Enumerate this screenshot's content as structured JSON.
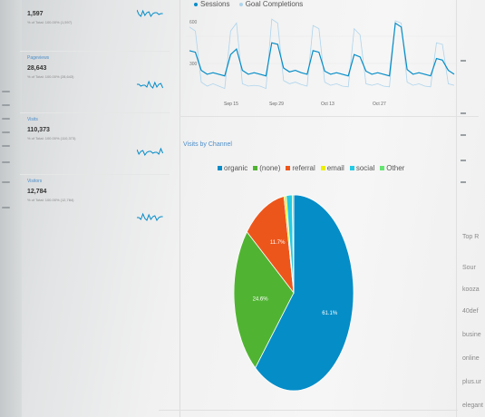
{
  "line_chart": {
    "legend": [
      {
        "label": "Sessions",
        "color": "#058dc7"
      },
      {
        "label": "Goal Completions",
        "color": "#aed4ec"
      }
    ],
    "y_labels": [
      "600",
      "300"
    ],
    "x_ticks": [
      "Sep 15",
      "Sep 29",
      "Oct 13",
      "Oct 27"
    ],
    "sessions": [
      60,
      58,
      35,
      30,
      32,
      30,
      28,
      55,
      62,
      35,
      30,
      32,
      30,
      28,
      70,
      68,
      38,
      33,
      35,
      32,
      30,
      60,
      58,
      34,
      30,
      32,
      30,
      28,
      55,
      52,
      34,
      30,
      32,
      30,
      28,
      95,
      90,
      36,
      30,
      32,
      30,
      28,
      50,
      48,
      35,
      30
    ],
    "goals": [
      90,
      85,
      20,
      15,
      18,
      15,
      12,
      85,
      95,
      18,
      15,
      16,
      15,
      12,
      100,
      95,
      22,
      18,
      20,
      17,
      15,
      92,
      88,
      20,
      16,
      18,
      15,
      14,
      88,
      80,
      18,
      16,
      18,
      15,
      14,
      98,
      95,
      20,
      16,
      18,
      15,
      14,
      70,
      68,
      18,
      16
    ]
  },
  "metric_cards": [
    {
      "name": "",
      "value": "1,597",
      "sub": "% of Total: 100.00% (1,597)"
    },
    {
      "name": "Pageviews",
      "value": "28,643",
      "sub": "% of Total: 100.00% (28,643)"
    },
    {
      "name": "Visits",
      "value": "110,373",
      "sub": "% of Total: 100.00% (110,373)"
    },
    {
      "name": "Visitors",
      "value": "12,784",
      "sub": "% of Total: 100.00% (12,784)"
    }
  ],
  "pie_section": {
    "title": "Visits by Channel"
  },
  "chart_data": {
    "type": "pie",
    "title": "Visits by Channel",
    "categories": [
      "organic",
      "(none)",
      "referral",
      "email",
      "social",
      "Other"
    ],
    "values": [
      61.1,
      24.6,
      11.7,
      0.6,
      1.6,
      0.4
    ],
    "labels_shown": [
      "61.1%",
      "24.6%",
      "11.7%"
    ],
    "colors": [
      "#058dc7",
      "#50b432",
      "#ed561b",
      "#edef00",
      "#24cbe5",
      "#64e572"
    ],
    "legend_position": "top"
  },
  "right_panel": {
    "items": [
      "Top R",
      "Sour",
      "kooza",
      "40def",
      "busine",
      "online",
      "plus.ur",
      "elegant"
    ]
  }
}
